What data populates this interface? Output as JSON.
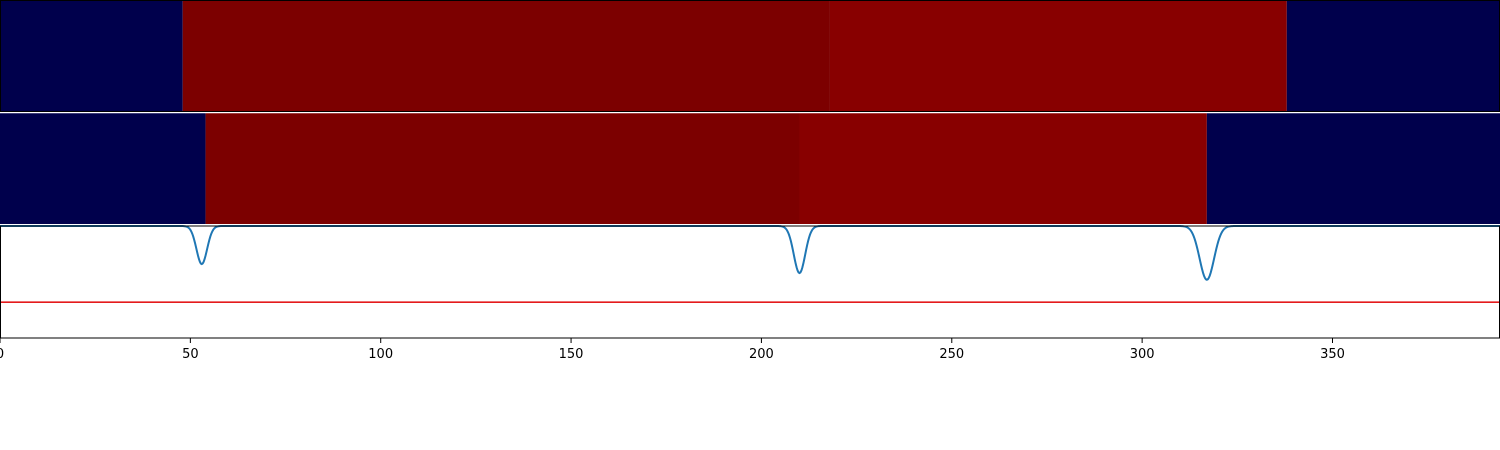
{
  "chart_data": {
    "type": "heatmap",
    "xlim": [
      0,
      394
    ],
    "x_ticks": [
      0,
      50,
      100,
      150,
      200,
      250,
      300,
      350
    ],
    "x_tick_labels": [
      "0",
      "50",
      "100",
      "150",
      "200",
      "250",
      "300",
      "350"
    ],
    "segment_rows": [
      {
        "segments": [
          {
            "x_start": 0,
            "x_end": 48,
            "state": "low",
            "color": "#00004c"
          },
          {
            "x_start": 48,
            "x_end": 218,
            "state": "high",
            "color": "#7c0000"
          },
          {
            "x_start": 218,
            "x_end": 338,
            "state": "high",
            "color": "#880000"
          },
          {
            "x_start": 338,
            "x_end": 394,
            "state": "low",
            "color": "#00004c"
          }
        ]
      },
      {
        "segments": [
          {
            "x_start": 0,
            "x_end": 54,
            "state": "low",
            "color": "#00004c"
          },
          {
            "x_start": 54,
            "x_end": 210,
            "state": "high",
            "color": "#7c0000"
          },
          {
            "x_start": 210,
            "x_end": 317,
            "state": "high",
            "color": "#880000"
          },
          {
            "x_start": 317,
            "x_end": 394,
            "state": "low",
            "color": "#00004c"
          }
        ]
      }
    ],
    "signal": {
      "color": "#1f77b4",
      "baseline": 0,
      "ylim": [
        -1.0,
        0.0
      ],
      "dips": [
        {
          "x": 53,
          "depth": 0.34,
          "width": 1.4
        },
        {
          "x": 210,
          "depth": 0.42,
          "width": 1.5
        },
        {
          "x": 317,
          "depth": 0.48,
          "width": 1.9
        }
      ]
    },
    "threshold": {
      "y": -0.68,
      "color": "#e41a1c"
    },
    "grid": false,
    "legend": "none"
  }
}
